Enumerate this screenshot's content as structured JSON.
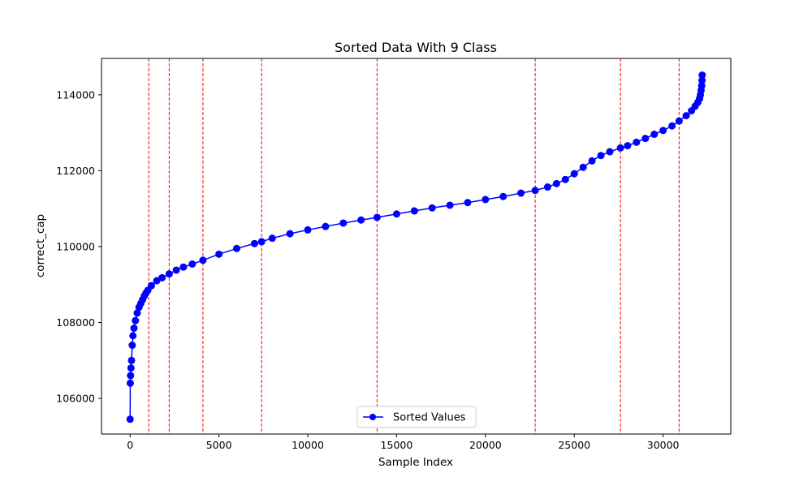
{
  "chart_data": {
    "type": "line",
    "title": "Sorted Data With 9 Class",
    "xlabel": "Sample Index",
    "ylabel": "correct_cap",
    "xlim": [
      -1610,
      33810
    ],
    "ylim": [
      105060,
      114960
    ],
    "xticks": [
      0,
      5000,
      10000,
      15000,
      20000,
      25000,
      30000
    ],
    "yticks": [
      106000,
      108000,
      110000,
      112000,
      114000
    ],
    "xtick_labels": [
      "0",
      "5000",
      "10000",
      "15000",
      "20000",
      "25000",
      "30000"
    ],
    "ytick_labels": [
      "106000",
      "108000",
      "110000",
      "112000",
      "114000"
    ],
    "grid": false,
    "legend": {
      "placement": "lower center",
      "entries": [
        "Sorted Values"
      ]
    },
    "series": [
      {
        "name": "Sorted Values",
        "color": "#0000ff",
        "marker": "circle",
        "x": [
          0,
          10,
          25,
          50,
          80,
          120,
          160,
          220,
          300,
          400,
          500,
          600,
          700,
          800,
          900,
          1000,
          1200,
          1500,
          1800,
          2200,
          2600,
          3000,
          3500,
          4100,
          5000,
          6000,
          7000,
          7400,
          8000,
          9000,
          10000,
          11000,
          12000,
          13000,
          13900,
          15000,
          16000,
          17000,
          18000,
          19000,
          20000,
          21000,
          22000,
          22800,
          23500,
          24000,
          24500,
          25000,
          25500,
          26000,
          26500,
          27000,
          27600,
          28000,
          28500,
          29000,
          29500,
          30000,
          30500,
          30900,
          31300,
          31600,
          31800,
          31950,
          32050,
          32100,
          32140,
          32170,
          32190,
          32200
        ],
        "y": [
          105450,
          106400,
          106600,
          106800,
          107000,
          107400,
          107650,
          107850,
          108050,
          108250,
          108400,
          108500,
          108600,
          108700,
          108780,
          108850,
          108970,
          109100,
          109180,
          109280,
          109380,
          109460,
          109540,
          109640,
          109800,
          109950,
          110080,
          110130,
          110220,
          110340,
          110440,
          110530,
          110620,
          110700,
          110770,
          110860,
          110940,
          111020,
          111090,
          111160,
          111240,
          111320,
          111410,
          111480,
          111570,
          111660,
          111770,
          111920,
          112090,
          112260,
          112400,
          112500,
          112600,
          112660,
          112750,
          112850,
          112960,
          113060,
          113180,
          113310,
          113450,
          113580,
          113700,
          113800,
          113900,
          114000,
          114120,
          114240,
          114380,
          114520
        ]
      }
    ],
    "class_boundaries": [
      1050,
      2200,
      4100,
      7400,
      13900,
      22800,
      27600,
      30900
    ],
    "boundary_color": "#ff0000"
  }
}
